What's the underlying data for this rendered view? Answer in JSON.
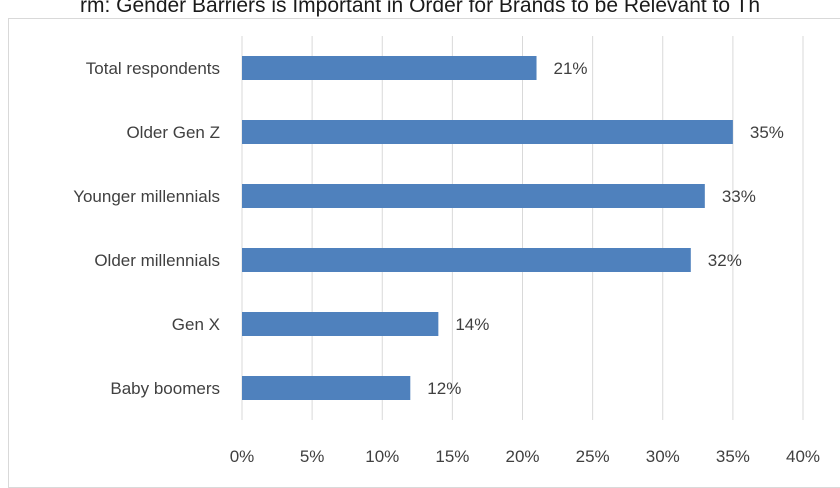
{
  "chart_data": {
    "type": "bar",
    "orientation": "horizontal",
    "title": "rm: Gender Barriers is Important in Order for Brands to be Relevant to Th",
    "categories": [
      "Total respondents",
      "Older Gen Z",
      "Younger millennials",
      "Older millennials",
      "Gen X",
      "Baby boomers"
    ],
    "values": [
      21,
      35,
      33,
      32,
      14,
      12
    ],
    "value_labels": [
      "21%",
      "35%",
      "33%",
      "32%",
      "14%",
      "12%"
    ],
    "xlim": [
      0,
      40
    ],
    "x_ticks": [
      0,
      5,
      10,
      15,
      20,
      25,
      30,
      35,
      40
    ],
    "x_tick_labels": [
      "0%",
      "5%",
      "10%",
      "15%",
      "20%",
      "25%",
      "30%",
      "35%",
      "40%"
    ],
    "xlabel": "",
    "ylabel": "",
    "grid": "vertical",
    "legend": "none",
    "bar_color": "#4f81bd"
  }
}
